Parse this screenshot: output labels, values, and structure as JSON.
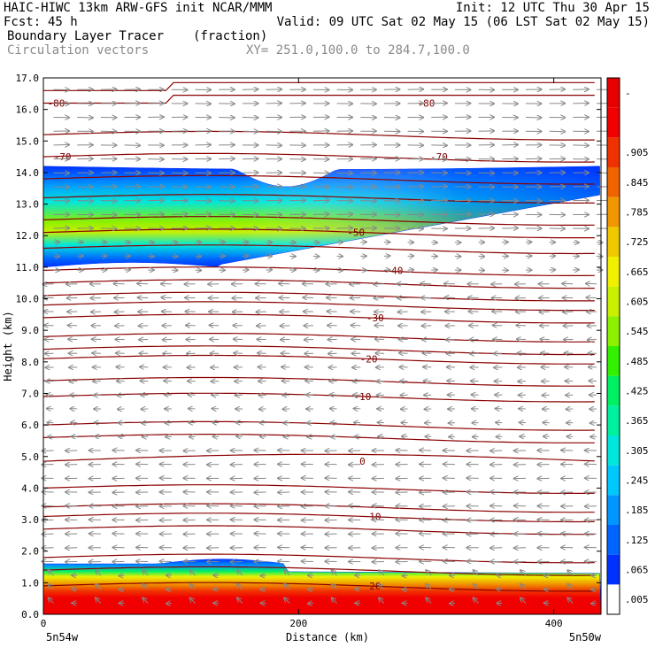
{
  "header": {
    "line1_left": "HAIC-HIWC 13km ARW-GFS init   NCAR/MMM",
    "line1_right": "Init: 12 UTC Thu 30 Apr 15",
    "fcst_label": "Fcst:",
    "fcst_value": "45 h",
    "valid": "Valid: 09 UTC Sat 02 May 15 (06 LST Sat 02 May 15)",
    "field_name": "Boundary Layer Tracer",
    "field_units": "(fraction)",
    "vector_name": "Circulation vectors",
    "xy_range": "XY= 251.0,100.0 to 284.7,100.0"
  },
  "chart_data": {
    "type": "heatmap",
    "xlabel": "Distance (km)",
    "ylabel": "Height (km)",
    "xlim": [
      0,
      437
    ],
    "ylim": [
      0.0,
      17.0
    ],
    "x_ticks": [
      {
        "value": 0,
        "label": "0"
      },
      {
        "value": 200,
        "label": "200"
      },
      {
        "value": 400,
        "label": "400"
      }
    ],
    "y_ticks": [
      "0.0",
      "1.0",
      "2.0",
      "3.0",
      "4.0",
      "5.0",
      "6.0",
      "7.0",
      "8.0",
      "9.0",
      "10.0",
      "11.0",
      "12.0",
      "13.0",
      "14.0",
      "15.0",
      "16.0",
      "17.0"
    ],
    "endpoint_labels": {
      "left": "5n54w",
      "right": "5n50w"
    },
    "colorbar": {
      "labels": [
        ".005",
        ".065",
        ".125",
        ".185",
        ".245",
        ".305",
        ".365",
        ".425",
        ".485",
        ".545",
        ".605",
        ".665",
        ".725",
        ".785",
        ".845",
        ".905",
        "",
        "-"
      ],
      "colors": [
        "#ffffff",
        "#0032ff",
        "#0064ff",
        "#0096ff",
        "#00c8ff",
        "#00e6dc",
        "#00f0a0",
        "#00f064",
        "#32f000",
        "#8cf000",
        "#c8f000",
        "#f0f000",
        "#f0c800",
        "#f09600",
        "#f06400",
        "#f03200",
        "#f00000",
        "#e60000"
      ]
    },
    "temperature_contours": [
      {
        "value": -80,
        "label": "-80",
        "label_positions_km": [
          10,
          300
        ]
      },
      {
        "value": -70,
        "label": "-70",
        "label_positions_km": [
          15,
          310
        ]
      },
      {
        "value": -50,
        "label": "-50",
        "label_positions_km": [
          245
        ]
      },
      {
        "value": -40,
        "label": "-40",
        "label_positions_km": [
          275
        ]
      },
      {
        "value": -30,
        "label": "-30",
        "label_positions_km": [
          260
        ]
      },
      {
        "value": -20,
        "label": "-20",
        "label_positions_km": [
          255
        ]
      },
      {
        "value": -10,
        "label": "-10",
        "label_positions_km": [
          250
        ]
      },
      {
        "value": 0,
        "label": "0",
        "label_positions_km": [
          250
        ]
      },
      {
        "value": 10,
        "label": "10",
        "label_positions_km": [
          260
        ]
      },
      {
        "value": 20,
        "label": "20",
        "label_positions_km": [
          260
        ]
      }
    ],
    "tracer_layers": [
      {
        "name": "upper tracer layer",
        "base_km": 11.0,
        "top_km": 14.2,
        "max_fraction": 0.725
      },
      {
        "name": "boundary layer",
        "base_km": 0.0,
        "top_km": 1.6,
        "max_fraction": 1.0
      }
    ]
  }
}
